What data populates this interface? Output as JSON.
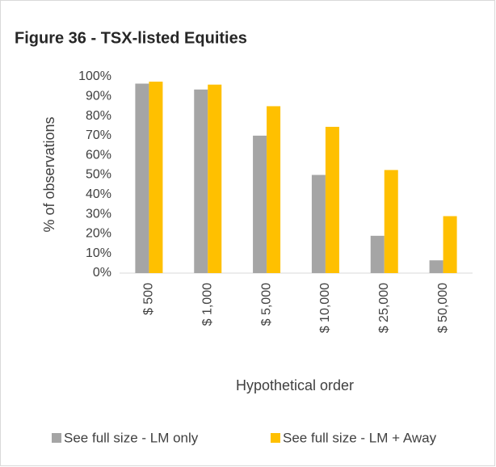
{
  "chart_data": {
    "type": "bar",
    "title": "Figure 36 - TSX-listed Equities",
    "xlabel": "Hypothetical order",
    "ylabel": "% of observations",
    "categories": [
      "$ 500",
      "$ 1,000",
      "$ 5,000",
      "$ 10,000",
      "$ 25,000",
      "$ 50,000"
    ],
    "series": [
      {
        "name": "See full size - LM only",
        "color": "#a5a5a5",
        "values": [
          96.5,
          93.5,
          70,
          50,
          19,
          6.5
        ]
      },
      {
        "name": "See full size - LM + Away",
        "color": "#ffc000",
        "values": [
          97.5,
          96,
          85,
          74.5,
          52.5,
          29
        ]
      }
    ],
    "ylim": [
      0,
      100
    ],
    "yticks": [
      {
        "value": 0,
        "label": "0%"
      },
      {
        "value": 10,
        "label": "10%"
      },
      {
        "value": 20,
        "label": "20%"
      },
      {
        "value": 30,
        "label": "30%"
      },
      {
        "value": 40,
        "label": "40%"
      },
      {
        "value": 50,
        "label": "50%"
      },
      {
        "value": 60,
        "label": "60%"
      },
      {
        "value": 70,
        "label": "70%"
      },
      {
        "value": 80,
        "label": "80%"
      },
      {
        "value": 90,
        "label": "90%"
      },
      {
        "value": 100,
        "label": "100%"
      }
    ],
    "grid": false,
    "legend": "bottom"
  }
}
